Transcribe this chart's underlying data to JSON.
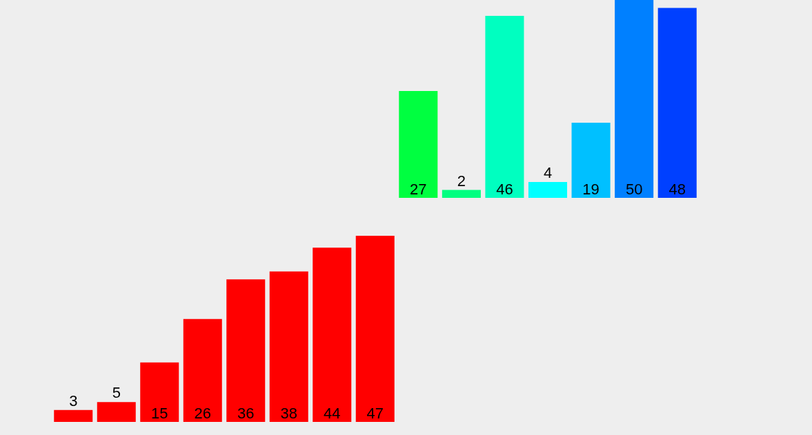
{
  "chart_data": [
    {
      "type": "bar",
      "categories": [
        null,
        null,
        null,
        null,
        null,
        null,
        null
      ],
      "values": [
        27,
        2,
        46,
        4,
        19,
        50,
        48
      ],
      "colors": [
        "#00ff40",
        "#00ff80",
        "#00ffc0",
        "#00ffff",
        "#00c0ff",
        "#0080ff",
        "#0040ff"
      ],
      "data_labels": true,
      "legend": false
    },
    {
      "type": "bar",
      "categories": [
        null,
        null,
        null,
        null,
        null,
        null,
        null,
        null
      ],
      "values": [
        3,
        5,
        15,
        26,
        36,
        38,
        44,
        47
      ],
      "color": "#ff0000",
      "data_labels": true,
      "legend": false
    }
  ]
}
